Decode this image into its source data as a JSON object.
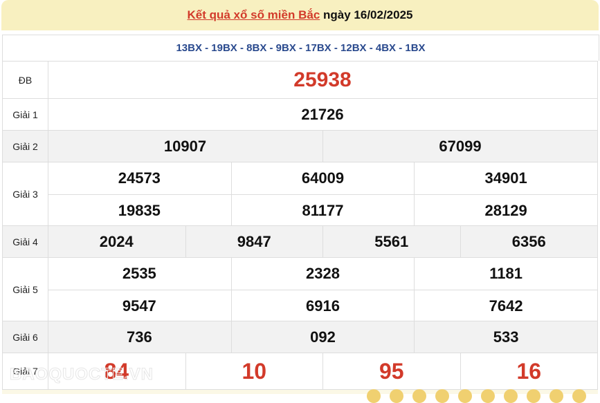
{
  "header": {
    "title_link": "Kết quả xổ số miền Bắc",
    "date_text": "ngày 16/02/2025"
  },
  "codes": "13BX - 19BX - 8BX - 9BX - 17BX - 12BX - 4BX - 1BX",
  "prizes": [
    {
      "label": "ĐB",
      "numbers": [
        "25938"
      ]
    },
    {
      "label": "Giải 1",
      "numbers": [
        "21726"
      ]
    },
    {
      "label": "Giải 2",
      "numbers": [
        "10907",
        "67099"
      ]
    },
    {
      "label": "Giải 3",
      "numbers": [
        "24573",
        "64009",
        "34901",
        "19835",
        "81177",
        "28129"
      ]
    },
    {
      "label": "Giải 4",
      "numbers": [
        "2024",
        "9847",
        "5561",
        "6356"
      ]
    },
    {
      "label": "Giải 5",
      "numbers": [
        "2535",
        "2328",
        "1181",
        "9547",
        "6916",
        "7642"
      ]
    },
    {
      "label": "Giải 6",
      "numbers": [
        "736",
        "092",
        "533"
      ]
    },
    {
      "label": "Giải 7",
      "numbers": [
        "84",
        "10",
        "95",
        "16"
      ]
    }
  ],
  "watermark": "BAOQUOCTE.VN",
  "colors": {
    "accent_red": "#d23a2a",
    "codes_blue": "#2a4a8e",
    "header_bg": "#f8f0c0"
  }
}
